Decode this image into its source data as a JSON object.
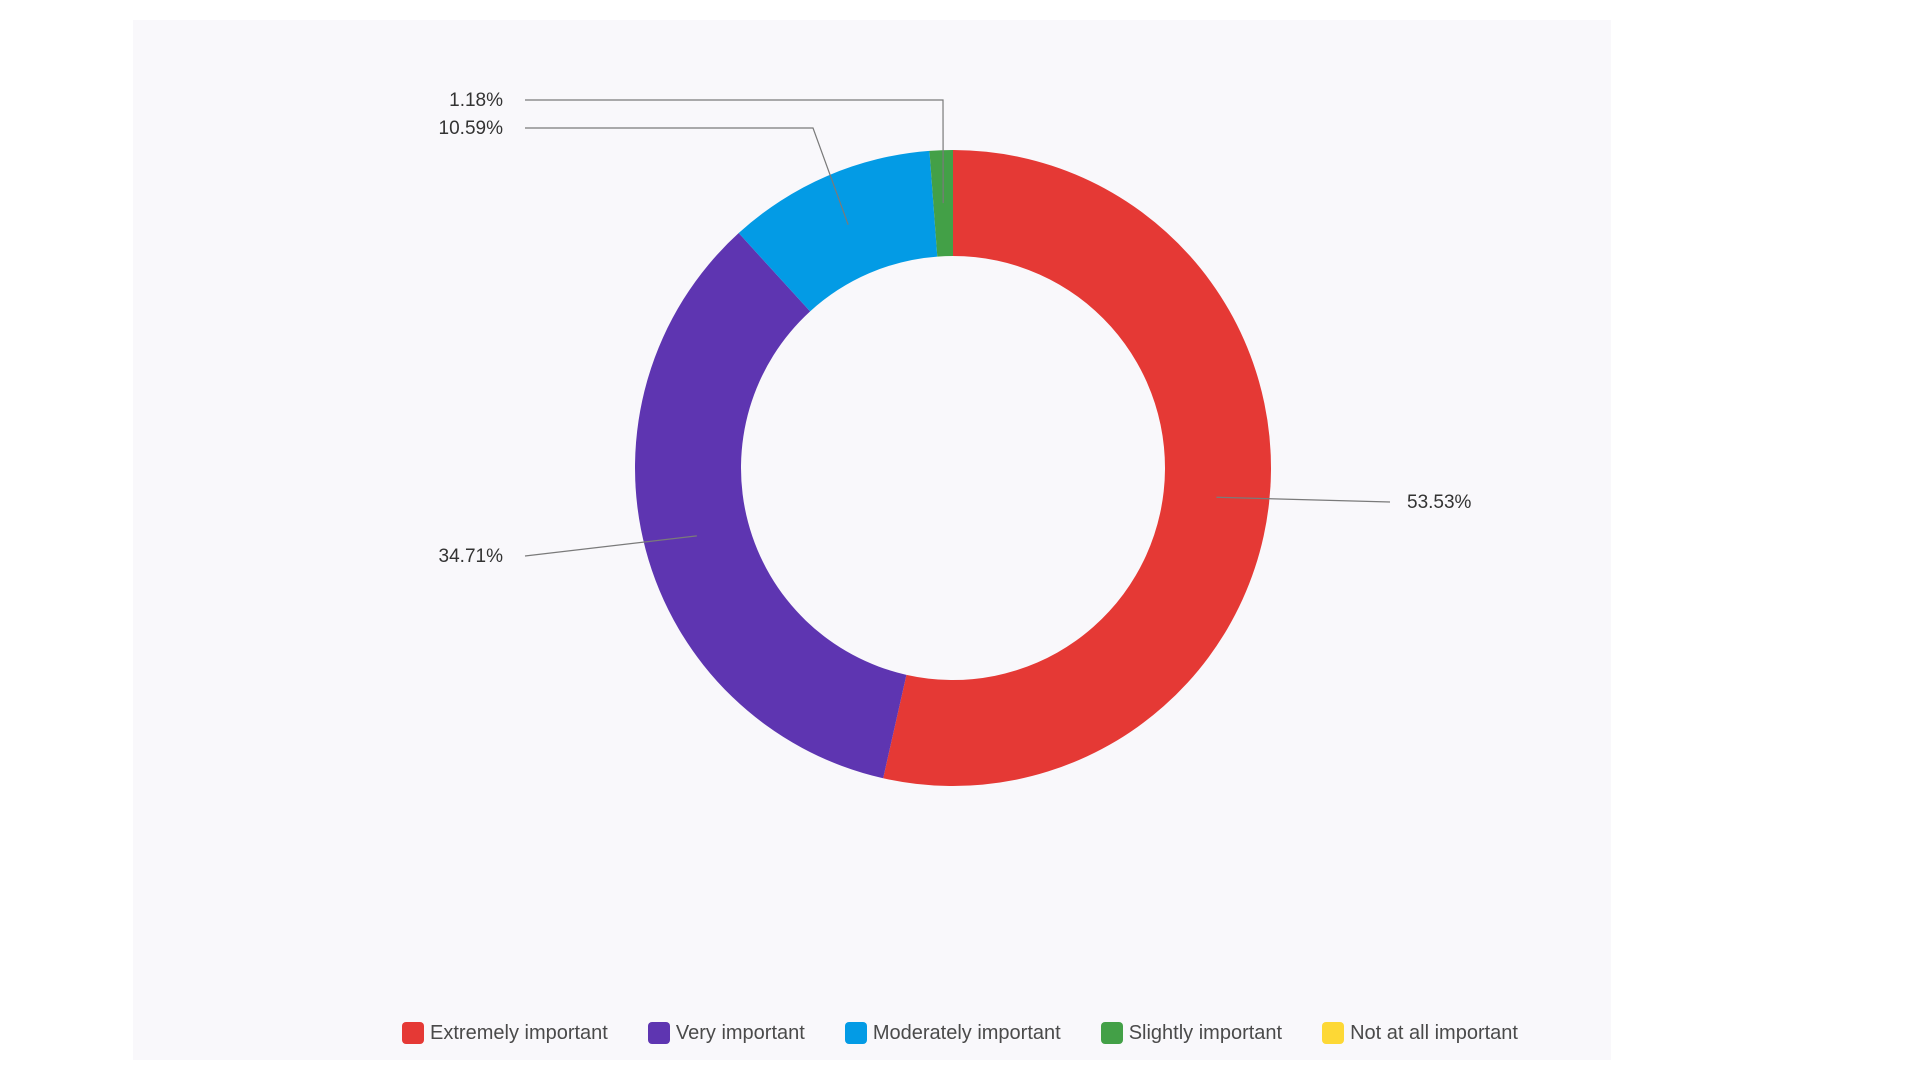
{
  "chart_data": {
    "type": "pie",
    "variant": "donut",
    "title": "",
    "categories": [
      "Extremely important",
      "Very important",
      "Moderately important",
      "Slightly important",
      "Not at all important"
    ],
    "values": [
      53.53,
      34.71,
      10.59,
      1.18,
      0
    ],
    "value_labels": [
      "53.53%",
      "34.71%",
      "10.59%",
      "1.18%",
      ""
    ],
    "colors": [
      "#e53935",
      "#5e35b1",
      "#039be5",
      "#43a047",
      "#fdd835"
    ],
    "legend_position": "bottom",
    "start_angle": "top, clockwise"
  }
}
